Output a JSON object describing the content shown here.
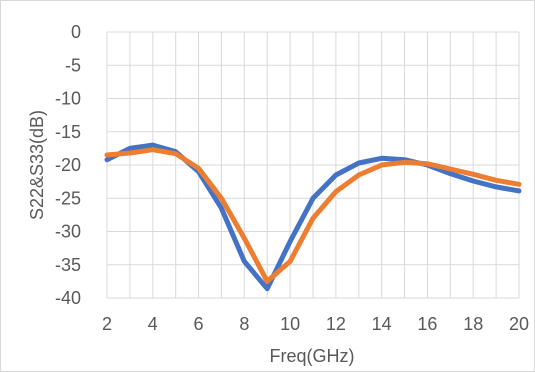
{
  "chart_data": {
    "type": "line",
    "title": "",
    "xlabel": "Freq(GHz)",
    "ylabel": "S22&S33(dB)",
    "xlim": [
      2,
      20
    ],
    "ylim": [
      -40,
      0
    ],
    "x_ticks": [
      2,
      4,
      6,
      8,
      10,
      12,
      14,
      16,
      18,
      20
    ],
    "y_ticks": [
      0,
      -5,
      -10,
      -15,
      -20,
      -25,
      -30,
      -35,
      -40
    ],
    "grid": true,
    "legend": "none",
    "x": [
      2,
      3,
      4,
      5,
      6,
      7,
      8,
      9,
      10,
      11,
      12,
      13,
      14,
      15,
      16,
      17,
      18,
      19,
      20
    ],
    "series": [
      {
        "color": "#4472C4",
        "values": [
          -19.2,
          -17.5,
          -17.0,
          -18.0,
          -21.0,
          -26.5,
          -34.5,
          -38.6,
          -31.5,
          -25.0,
          -21.5,
          -19.7,
          -19.0,
          -19.2,
          -20.0,
          -21.3,
          -22.4,
          -23.3,
          -23.9
        ]
      },
      {
        "color": "#ED7D31",
        "values": [
          -18.5,
          -18.2,
          -17.7,
          -18.3,
          -20.5,
          -25.0,
          -31.0,
          -37.5,
          -34.5,
          -28.0,
          -24.0,
          -21.5,
          -20.0,
          -19.6,
          -19.8,
          -20.6,
          -21.4,
          -22.3,
          -22.9
        ]
      }
    ]
  }
}
